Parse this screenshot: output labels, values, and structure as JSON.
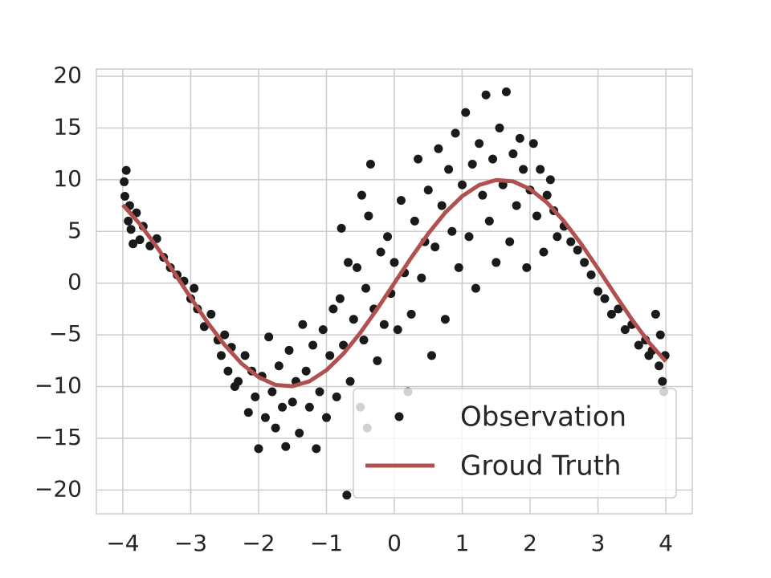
{
  "chart_data": {
    "type": "scatter",
    "xlim": [
      -4.39,
      4.39
    ],
    "ylim": [
      -22.3,
      20.7
    ],
    "xticks": [
      {
        "value": -4,
        "label": "−4"
      },
      {
        "value": -3,
        "label": "−3"
      },
      {
        "value": -2,
        "label": "−2"
      },
      {
        "value": -1,
        "label": "−1"
      },
      0,
      1,
      2,
      3,
      4
    ],
    "yticks": [
      {
        "value": -20,
        "label": "−20"
      },
      {
        "value": -15,
        "label": "−15"
      },
      {
        "value": -10,
        "label": "−10"
      },
      {
        "value": -5,
        "label": "−5"
      },
      0,
      5,
      10,
      15,
      20
    ],
    "grid": true,
    "legend": "lower right",
    "series": [
      {
        "name": "Observation",
        "type": "scatter",
        "color": "#1a1a1a",
        "x": [
          -3.98,
          -3.95,
          -3.97,
          -3.9,
          -3.92,
          -3.88,
          -3.85,
          -3.8,
          -3.75,
          -3.7,
          -3.6,
          -3.5,
          -3.4,
          -3.3,
          -3.2,
          -3.1,
          -3.0,
          -2.9,
          -2.95,
          -2.8,
          -2.7,
          -2.6,
          -2.55,
          -2.5,
          -2.45,
          -2.4,
          -2.35,
          -2.3,
          -2.2,
          -2.15,
          -2.1,
          -2.05,
          -2.0,
          -1.95,
          -1.9,
          -1.85,
          -1.8,
          -1.75,
          -1.7,
          -1.65,
          -1.6,
          -1.55,
          -1.5,
          -1.45,
          -1.4,
          -1.35,
          -1.3,
          -1.25,
          -1.2,
          -1.15,
          -1.1,
          -1.05,
          -1.0,
          -0.95,
          -0.9,
          -0.85,
          -0.8,
          -0.78,
          -0.75,
          -0.7,
          -0.68,
          -0.65,
          -0.6,
          -0.55,
          -0.5,
          -0.48,
          -0.45,
          -0.42,
          -0.4,
          -0.38,
          -0.35,
          -0.3,
          -0.25,
          -0.2,
          -0.15,
          -0.1,
          -0.05,
          0.0,
          0.05,
          0.1,
          0.15,
          0.2,
          0.25,
          0.3,
          0.35,
          0.4,
          0.45,
          0.5,
          0.55,
          0.6,
          0.65,
          0.7,
          0.75,
          0.8,
          0.85,
          0.9,
          0.95,
          1.0,
          1.05,
          1.1,
          1.15,
          1.2,
          1.25,
          1.3,
          1.35,
          1.4,
          1.45,
          1.5,
          1.55,
          1.6,
          1.65,
          1.7,
          1.75,
          1.8,
          1.85,
          1.9,
          1.95,
          2.0,
          2.05,
          2.1,
          2.15,
          2.2,
          2.25,
          2.3,
          2.35,
          2.4,
          2.5,
          2.6,
          2.7,
          2.8,
          2.9,
          3.0,
          3.1,
          3.2,
          3.3,
          3.4,
          3.5,
          3.6,
          3.7,
          3.75,
          3.8,
          3.85,
          3.9,
          3.92,
          3.95,
          3.97,
          3.99
        ],
        "values": [
          9.8,
          10.9,
          8.4,
          7.5,
          6.0,
          5.2,
          3.8,
          6.8,
          4.2,
          5.5,
          3.6,
          4.3,
          2.5,
          1.5,
          0.8,
          0.2,
          -1.5,
          -2.5,
          -0.5,
          -4.2,
          -3.0,
          -5.5,
          -7.0,
          -5.0,
          -8.5,
          -6.2,
          -10.0,
          -9.5,
          -7.0,
          -12.5,
          -8.5,
          -11.0,
          -16.0,
          -9.0,
          -13.0,
          -5.2,
          -10.5,
          -14.0,
          -8.0,
          -12.0,
          -15.8,
          -6.5,
          -11.5,
          -9.5,
          -14.5,
          -4.0,
          -8.5,
          -12.0,
          -6.0,
          -16.0,
          -10.5,
          -4.5,
          -13.0,
          -7.0,
          -2.5,
          -11.0,
          -1.5,
          5.3,
          -6.0,
          -20.5,
          2.0,
          -9.5,
          -3.5,
          1.5,
          -12.0,
          8.5,
          -5.5,
          -0.5,
          -14.0,
          6.5,
          11.5,
          -2.5,
          -7.5,
          3.0,
          -4.0,
          4.5,
          -1.0,
          2.0,
          -4.5,
          8.0,
          1.0,
          -10.5,
          -3.0,
          6.0,
          12.0,
          0.5,
          4.0,
          9.0,
          -7.0,
          3.5,
          13.0,
          7.5,
          -3.5,
          11.0,
          5.0,
          14.5,
          1.5,
          9.5,
          16.5,
          4.5,
          11.5,
          -0.5,
          13.5,
          8.5,
          18.2,
          6.0,
          12.0,
          2.0,
          15.0,
          9.5,
          18.5,
          4.0,
          12.5,
          7.5,
          14.0,
          11.0,
          1.5,
          9.0,
          13.5,
          6.5,
          11.0,
          3.0,
          8.5,
          10.0,
          7.0,
          4.5,
          5.5,
          4.0,
          3.2,
          2.0,
          0.8,
          -0.8,
          -1.5,
          -3.0,
          -2.5,
          -4.5,
          -4.0,
          -6.0,
          -5.5,
          -7.0,
          -6.5,
          -3.0,
          -8.0,
          -5.0,
          -9.5,
          -10.5,
          -7.0
        ]
      },
      {
        "name": "Groud Truth",
        "type": "line",
        "color": "#b0504f",
        "x": [
          -4,
          -3.75,
          -3.5,
          -3.25,
          -3,
          -2.75,
          -2.5,
          -2.25,
          -2,
          -1.75,
          -1.5,
          -1.25,
          -1,
          -0.75,
          -0.5,
          -0.25,
          0,
          0.25,
          0.5,
          0.75,
          1,
          1.25,
          1.5,
          1.75,
          2,
          2.25,
          2.5,
          2.75,
          3,
          3.25,
          3.5,
          3.75,
          4
        ],
        "values": [
          7.57,
          5.72,
          3.51,
          1.08,
          -1.41,
          -3.82,
          -5.98,
          -7.78,
          -9.09,
          -9.84,
          -9.97,
          -9.49,
          -8.41,
          -6.82,
          -4.79,
          -2.47,
          0,
          2.47,
          4.79,
          6.82,
          8.41,
          9.49,
          9.97,
          9.84,
          9.09,
          7.78,
          5.98,
          3.82,
          1.41,
          -1.08,
          -3.51,
          -5.72,
          -7.57
        ]
      }
    ]
  }
}
